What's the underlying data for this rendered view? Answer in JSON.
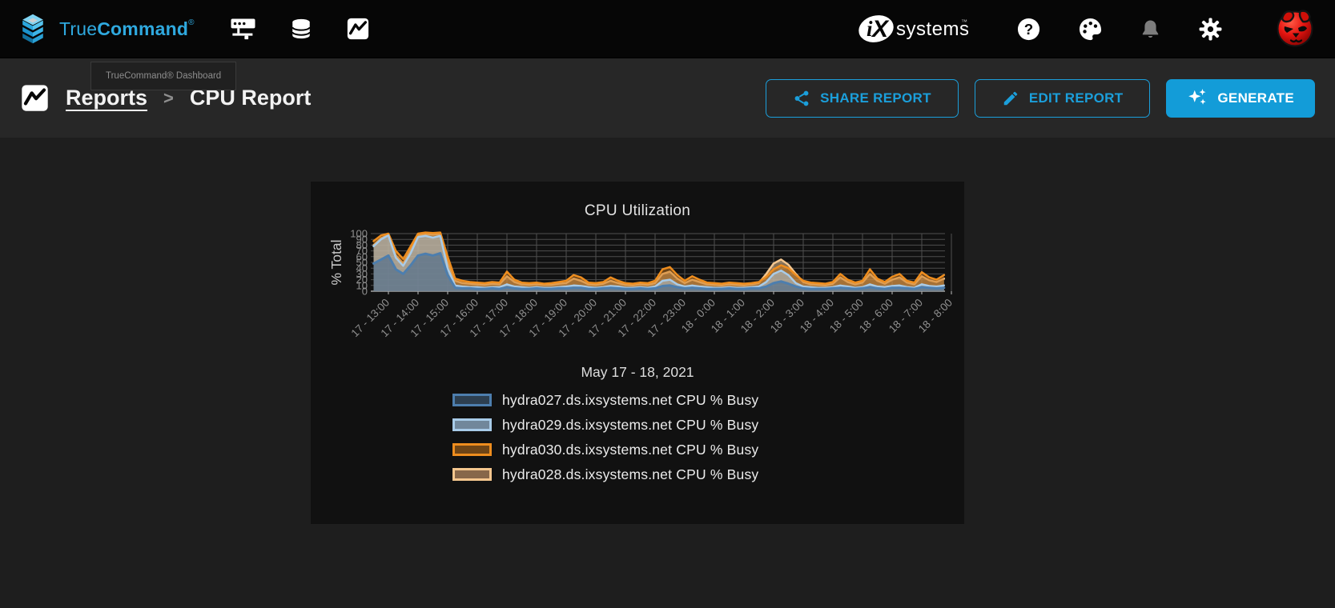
{
  "navbar": {
    "brand_true": "True",
    "brand_command": "Command",
    "brand_reg": "®",
    "ix_logo_ix": "iX",
    "ix_logo_systems": "systems",
    "ix_logo_tm": "™"
  },
  "tooltip_text": "TrueCommand® Dashboard",
  "breadcrumb": {
    "reports": "Reports",
    "separator": ">",
    "current": "CPU Report"
  },
  "actions": {
    "share_label": "SHARE REPORT",
    "edit_label": "EDIT REPORT",
    "generate_label": "GENERATE"
  },
  "colors": {
    "accent_blue": "#189cd8",
    "navbar_bg": "#060606",
    "header_bg": "#272727",
    "page_bg": "#1e1e1e",
    "card_bg": "#111111",
    "grid_line": "#4e4e4e",
    "axis_line": "#a5a5a5",
    "tick_text": "#909090"
  },
  "chart_data": {
    "type": "area",
    "title": "CPU Utilization",
    "ylabel": "% Total",
    "xlabel": "May 17 - 18, 2021",
    "ylim": [
      0,
      100
    ],
    "grid": true,
    "legend_position": "bottom",
    "y_ticks": [
      0,
      10,
      20,
      30,
      40,
      50,
      60,
      70,
      80,
      90,
      100
    ],
    "x_tick_hours": [
      13,
      14,
      15,
      16,
      17,
      18,
      19,
      20,
      21,
      22,
      23,
      24,
      25,
      26,
      27,
      28,
      29,
      30,
      31,
      32
    ],
    "x_tick_labels": [
      "17 - 13:00",
      "17 - 14:00",
      "17 - 15:00",
      "17 - 16:00",
      "17 - 17:00",
      "17 - 18:00",
      "17 - 19:00",
      "17 - 20:00",
      "17 - 21:00",
      "17 - 22:00",
      "17 - 23:00",
      "18 - 0:00",
      "18 - 1:00",
      "18 - 2:00",
      "18 - 3:00",
      "18 - 4:00",
      "18 - 5:00",
      "18 - 6:00",
      "18 - 7:00",
      "18 - 8:00"
    ],
    "x_start_hour": 12.5,
    "x_step_hours": 0.25,
    "render_order": [
      3,
      2,
      1,
      0
    ],
    "series": [
      {
        "name": "hydra027.ds.ixsystems.net CPU % Busy",
        "line_color": "#4d7eae",
        "fill_color": "rgba(61,98,138,0.55)",
        "swatch_fill": "#2d3f50",
        "stroke_width": 3,
        "values": [
          48,
          55,
          62,
          38,
          30,
          45,
          62,
          65,
          62,
          66,
          28,
          6,
          5,
          5,
          4,
          4,
          5,
          4,
          7,
          5,
          4,
          4,
          5,
          4,
          4,
          5,
          5,
          6,
          6,
          4,
          4,
          5,
          6,
          5,
          4,
          4,
          5,
          4,
          5,
          9,
          10,
          7,
          5,
          6,
          5,
          4,
          4,
          4,
          5,
          4,
          4,
          5,
          5,
          8,
          14,
          17,
          13,
          8,
          5,
          4,
          4,
          4,
          5,
          6,
          5,
          4,
          5,
          7,
          5,
          4,
          6,
          6,
          5,
          4,
          7,
          6,
          5,
          6
        ]
      },
      {
        "name": "hydra029.ds.ixsystems.net CPU % Busy",
        "line_color": "#a8cbe8",
        "fill_color": "rgba(170,203,232,0.5)",
        "swatch_fill": "#71879b",
        "stroke_width": 2.5,
        "values": [
          78,
          90,
          97,
          58,
          44,
          66,
          94,
          96,
          93,
          96,
          40,
          10,
          8,
          7,
          7,
          6,
          7,
          7,
          12,
          8,
          7,
          6,
          7,
          6,
          6,
          7,
          8,
          10,
          9,
          7,
          6,
          7,
          9,
          8,
          6,
          6,
          7,
          6,
          8,
          18,
          20,
          12,
          8,
          10,
          8,
          7,
          6,
          6,
          7,
          6,
          6,
          7,
          8,
          16,
          30,
          36,
          28,
          14,
          8,
          7,
          6,
          6,
          7,
          10,
          8,
          6,
          7,
          12,
          8,
          7,
          9,
          10,
          7,
          6,
          12,
          9,
          8,
          10
        ]
      },
      {
        "name": "hydra030.ds.ixsystems.net CPU % Busy",
        "line_color": "#ee8d1e",
        "fill_color": "rgba(200,118,25,0.5)",
        "swatch_fill": "#6f4516",
        "stroke_width": 2.5,
        "values": [
          87,
          97,
          100,
          70,
          56,
          78,
          100,
          102,
          101,
          102,
          60,
          22,
          18,
          16,
          15,
          14,
          16,
          15,
          34,
          20,
          15,
          14,
          15,
          13,
          14,
          16,
          18,
          28,
          24,
          15,
          14,
          16,
          24,
          18,
          14,
          13,
          15,
          14,
          18,
          38,
          42,
          28,
          18,
          26,
          20,
          15,
          14,
          13,
          15,
          14,
          13,
          14,
          16,
          25,
          38,
          45,
          40,
          28,
          18,
          15,
          14,
          13,
          16,
          30,
          20,
          15,
          18,
          38,
          22,
          16,
          25,
          30,
          18,
          15,
          33,
          24,
          20,
          28
        ]
      },
      {
        "name": "hydra028.ds.ixsystems.net CPU % Busy",
        "line_color": "#f4c68e",
        "fill_color": "rgba(222,186,140,0.55)",
        "swatch_fill": "#87674a",
        "stroke_width": 2.5,
        "values": [
          80,
          92,
          98,
          62,
          48,
          72,
          97,
          99,
          98,
          99,
          50,
          18,
          14,
          13,
          12,
          11,
          13,
          12,
          26,
          16,
          12,
          11,
          12,
          11,
          11,
          13,
          14,
          22,
          18,
          12,
          11,
          13,
          18,
          14,
          11,
          10,
          12,
          11,
          14,
          30,
          34,
          22,
          14,
          20,
          16,
          12,
          11,
          10,
          12,
          11,
          10,
          12,
          14,
          30,
          48,
          55,
          46,
          30,
          16,
          12,
          11,
          10,
          13,
          24,
          16,
          12,
          15,
          30,
          18,
          13,
          20,
          24,
          15,
          12,
          26,
          19,
          16,
          22
        ]
      }
    ]
  }
}
